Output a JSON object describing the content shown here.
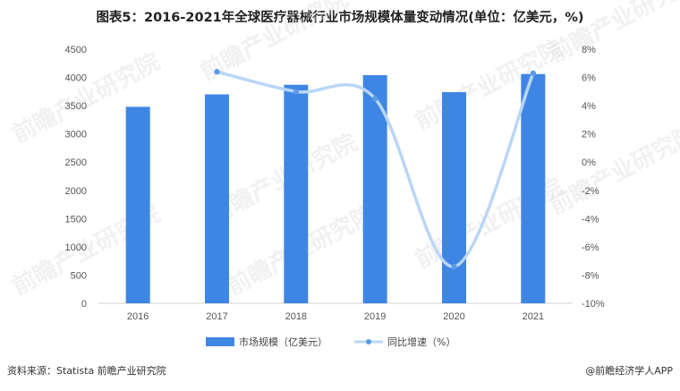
{
  "chart_data": {
    "type": "bar+line",
    "title": "图表5：2016-2021年全球医疗器械行业市场规模体量变动情况(单位：亿美元，%)",
    "categories": [
      "2016",
      "2017",
      "2018",
      "2019",
      "2020",
      "2021"
    ],
    "series": [
      {
        "name": "市场规模（亿美元）",
        "type": "bar",
        "axis": "left",
        "color": "#3f86e4",
        "values": [
          3480,
          3700,
          3870,
          4040,
          3740,
          4060
        ]
      },
      {
        "name": "同比增速（%）",
        "type": "line",
        "axis": "right",
        "color": "#b9d6f7",
        "values": [
          null,
          6.4,
          5.0,
          4.5,
          -7.4,
          6.3
        ]
      }
    ],
    "y_left": {
      "ylim": [
        0,
        4500
      ],
      "ticks": [
        "0",
        "500",
        "1000",
        "1500",
        "2000",
        "2500",
        "3000",
        "3500",
        "4000",
        "4500"
      ]
    },
    "y_right": {
      "ylim": [
        -10,
        8
      ],
      "ticks": [
        "-10%",
        "-8%",
        "-6%",
        "-4%",
        "-2%",
        "0%",
        "2%",
        "4%",
        "6%",
        "8%"
      ]
    },
    "grid": false,
    "legend_position": "bottom"
  },
  "watermark": "前瞻产业研究院",
  "footer": {
    "source": "资料来源：Statista 前瞻产业研究院",
    "brand": "@前瞻经济学人APP"
  }
}
